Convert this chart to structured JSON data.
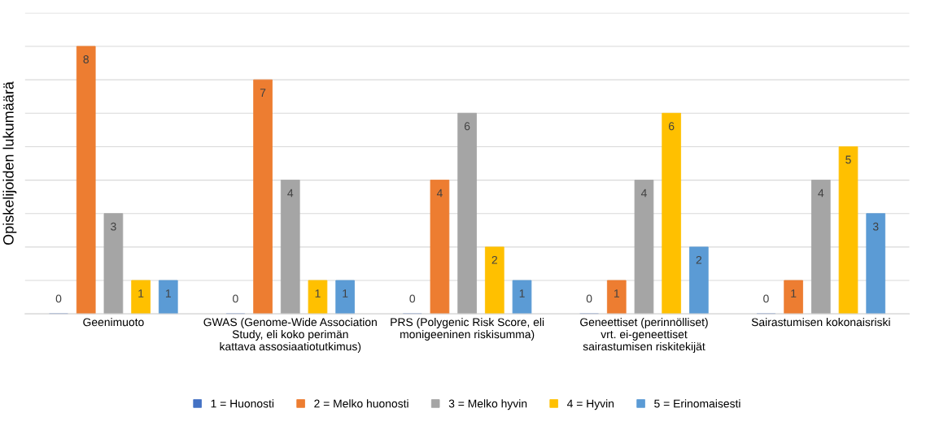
{
  "chart_data": {
    "type": "bar",
    "ylabel": "Opiskelijoiden lukumäärä",
    "categories": [
      "Geenimuoto",
      "GWAS (Genome-Wide Association Study, eli koko perimän kattava assosiaatiotutkimus)",
      "PRS (Polygenic Risk Score, eli monigeeninen riskisumma)",
      "Geneettiset (perinnölliset) vrt. ei-geneettiset sairastumisen riskitekijät",
      "Sairastumisen kokonaisriski"
    ],
    "series": [
      {
        "name": "1 = Huonosti",
        "color": "#4472c4",
        "values": [
          0,
          0,
          0,
          0,
          0
        ]
      },
      {
        "name": "2 = Melko huonosti",
        "color": "#ed7d31",
        "values": [
          8,
          7,
          4,
          1,
          1
        ]
      },
      {
        "name": "3 = Melko hyvin",
        "color": "#a5a5a5",
        "values": [
          3,
          4,
          6,
          4,
          4
        ]
      },
      {
        "name": "4 = Hyvin",
        "color": "#ffc000",
        "values": [
          1,
          1,
          2,
          6,
          5
        ]
      },
      {
        "name": "5 = Erinomaisesti",
        "color": "#5b9bd5",
        "values": [
          1,
          1,
          1,
          2,
          3
        ]
      }
    ],
    "ylim": [
      0,
      9
    ],
    "yticks": [
      {
        "value": 0,
        "label": null
      },
      {
        "value": 1,
        "label": null
      },
      {
        "value": 2,
        "label": null
      },
      {
        "value": 3,
        "label": null
      },
      {
        "value": 4,
        "label": null
      },
      {
        "value": 5,
        "label": null
      },
      {
        "value": 6,
        "label": null
      },
      {
        "value": 7,
        "label": null
      },
      {
        "value": 8,
        "label": null
      },
      {
        "value": 9,
        "label": null
      }
    ],
    "tick_labels": "x",
    "grid": "y",
    "legend": "bottom",
    "data_labels": true
  }
}
